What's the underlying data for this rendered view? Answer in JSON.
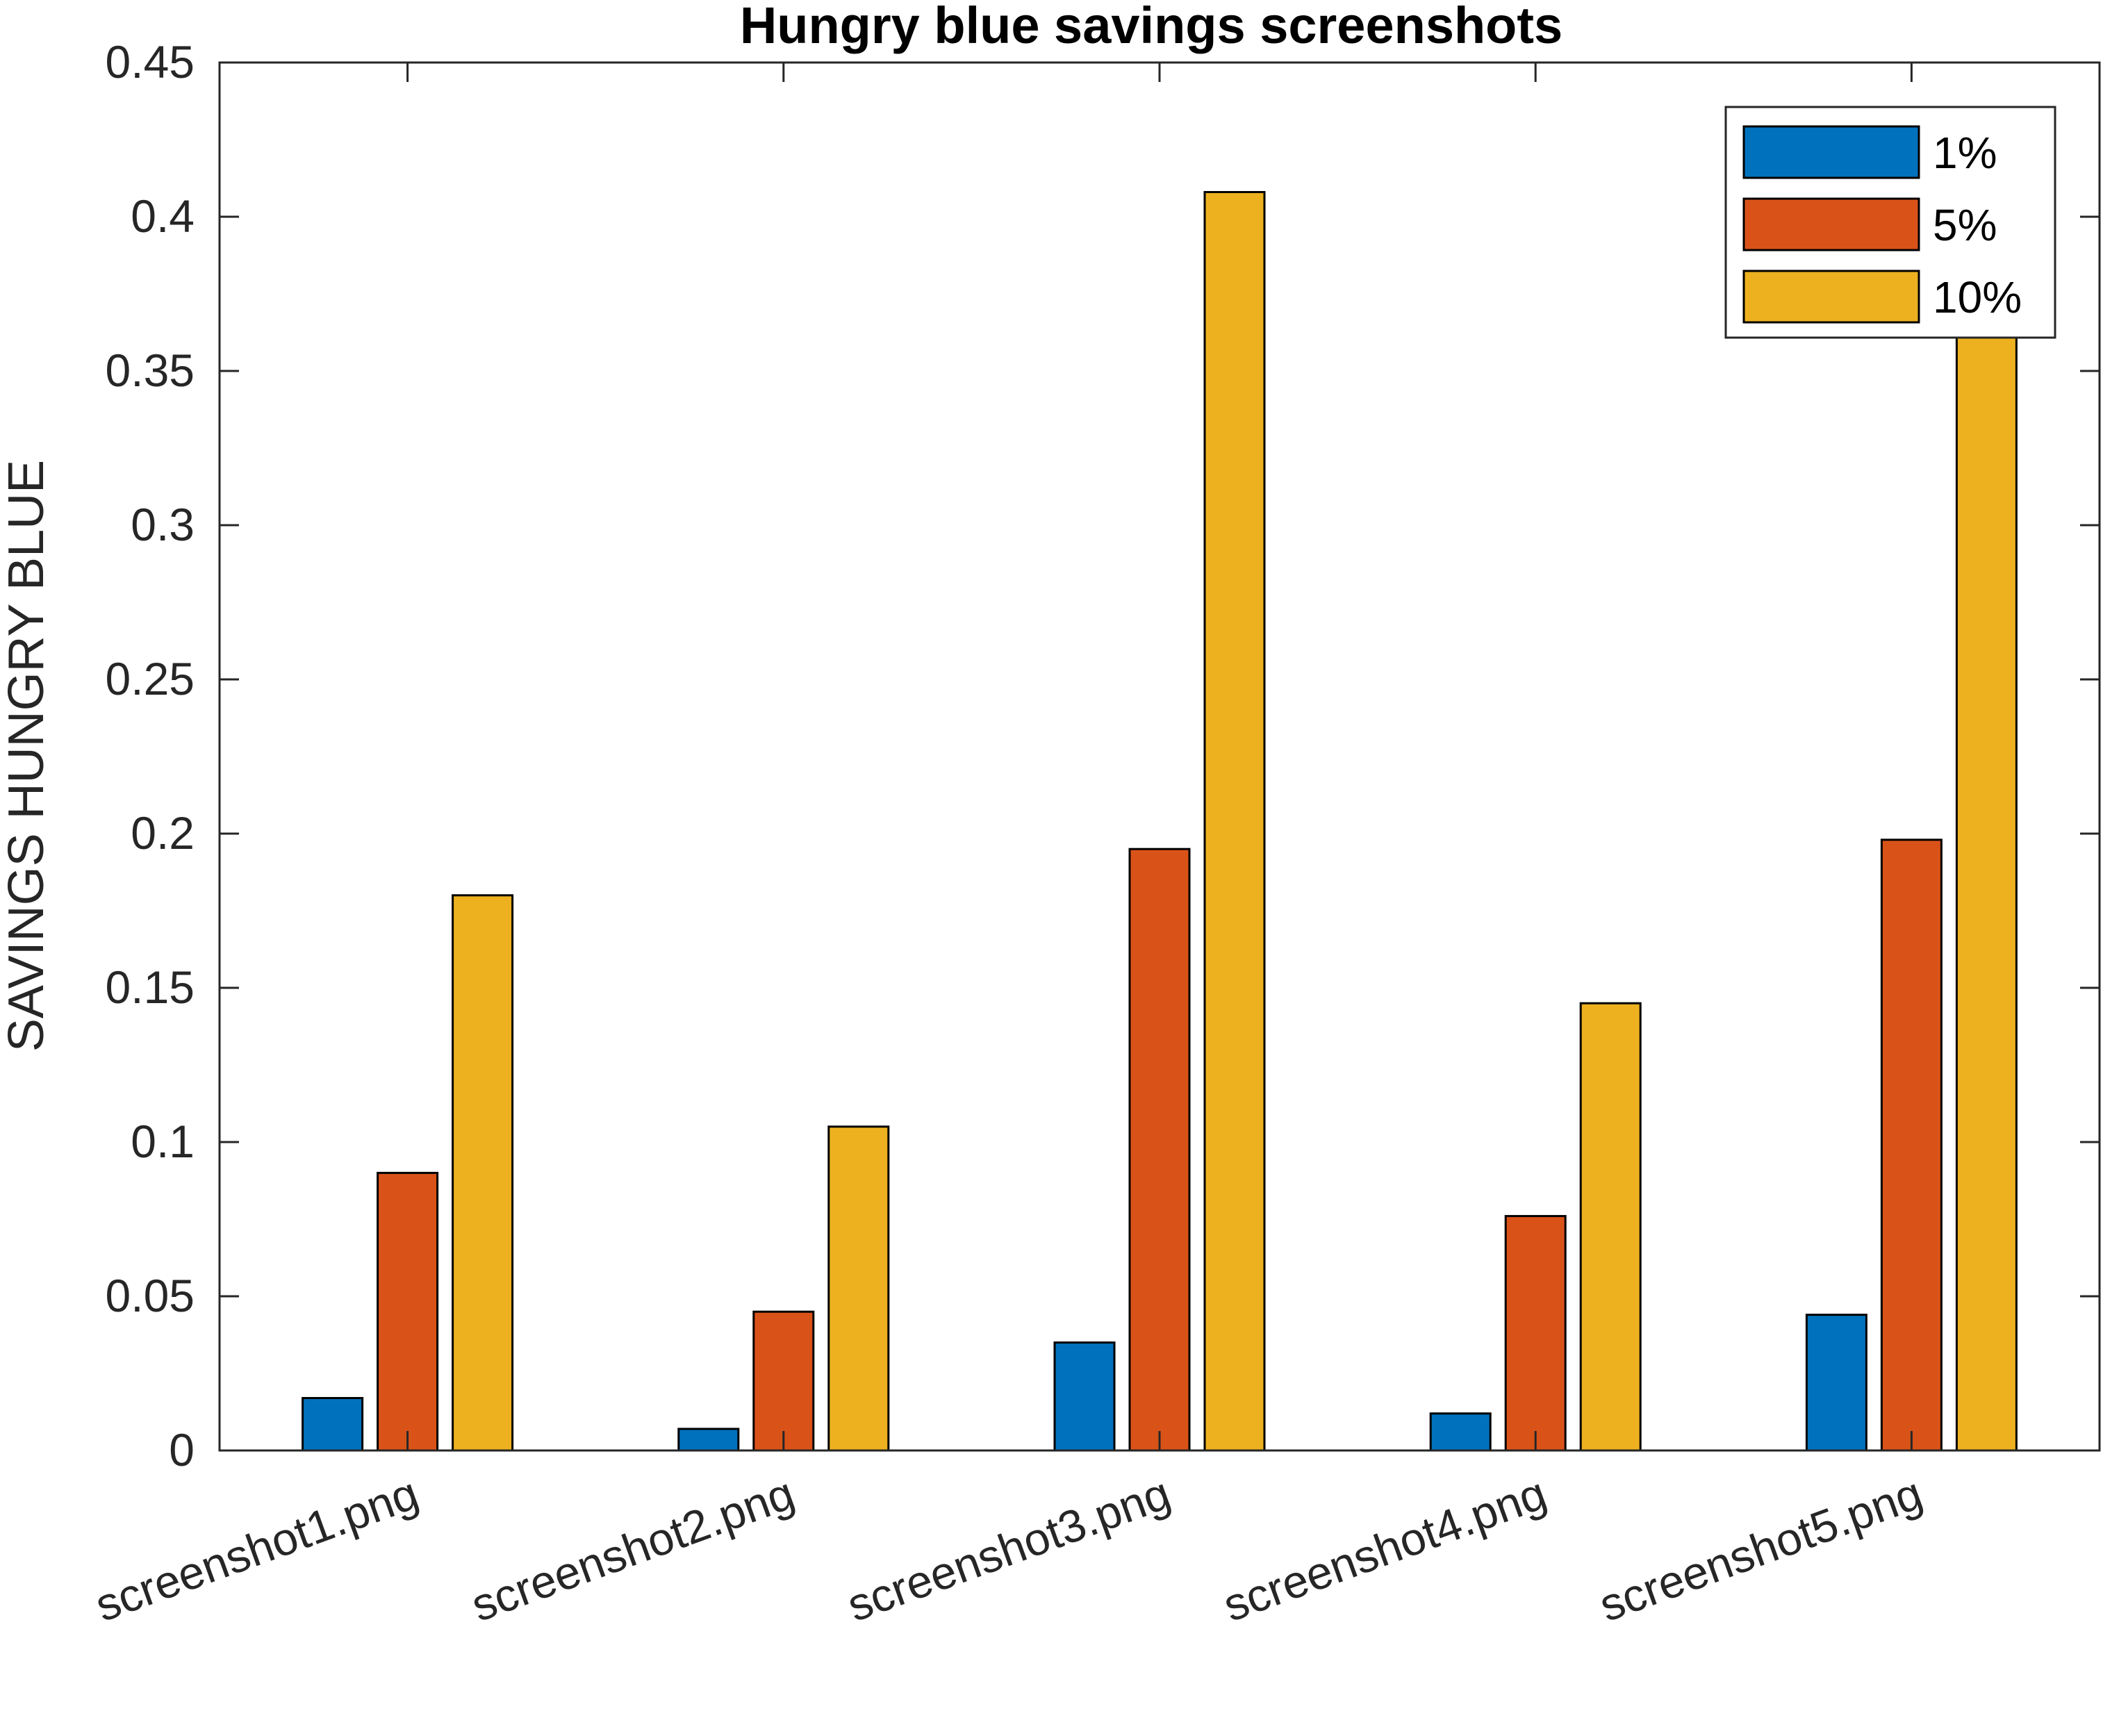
{
  "chart_data": {
    "type": "bar",
    "title": "Hungry blue savings screenshots",
    "xlabel": "",
    "ylabel": "SAVINGS HUNGRY BLUE",
    "categories": [
      "screenshot1.png",
      "screenshot2.png",
      "screenshot3.png",
      "screenshot4.png",
      "screenshot5.png"
    ],
    "series": [
      {
        "name": "1%",
        "color": "#0072BD",
        "values": [
          0.017,
          0.007,
          0.035,
          0.012,
          0.044
        ]
      },
      {
        "name": "5%",
        "color": "#D95319",
        "values": [
          0.09,
          0.045,
          0.195,
          0.076,
          0.198
        ]
      },
      {
        "name": "10%",
        "color": "#EDB120",
        "values": [
          0.18,
          0.105,
          0.408,
          0.145,
          0.389
        ]
      }
    ],
    "ylim": [
      0,
      0.45
    ],
    "yticks": [
      "0",
      "0.05",
      "0.1",
      "0.15",
      "0.2",
      "0.25",
      "0.3",
      "0.35",
      "0.4",
      "0.45"
    ],
    "grid": false,
    "legend_position": "top-right"
  }
}
